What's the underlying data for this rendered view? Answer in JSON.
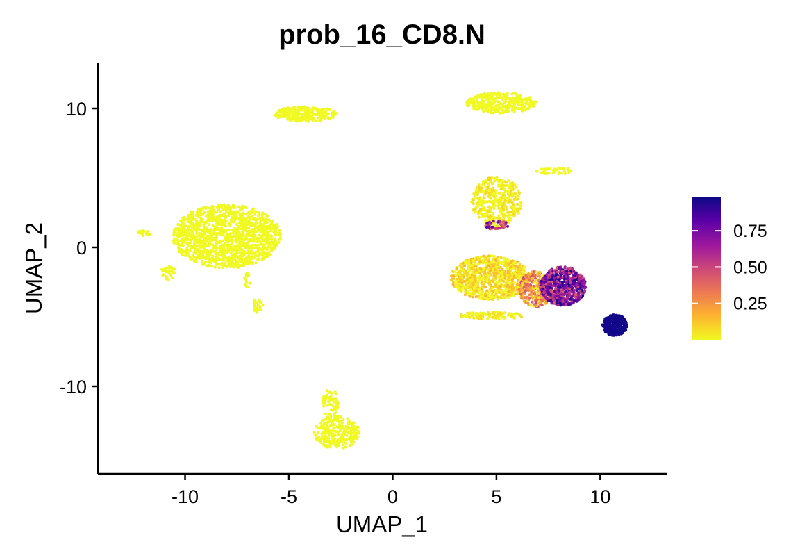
{
  "chart_data": {
    "type": "scatter",
    "title": "prob_16_CD8.N",
    "xlabel": "UMAP_1",
    "ylabel": "UMAP_2",
    "xlim": [
      -14.2,
      13.2
    ],
    "ylim": [
      -16.3,
      13.3
    ],
    "x_ticks": [
      -10,
      -5,
      0,
      5,
      10
    ],
    "x_tick_labels": [
      "-10",
      "-5",
      "0",
      "5",
      "10"
    ],
    "y_ticks": [
      -10,
      0,
      10
    ],
    "y_tick_labels": [
      "-10",
      "0",
      "10"
    ],
    "grid": false,
    "legend": {
      "placement": "right",
      "type": "colorbar",
      "range": [
        0.0,
        0.98
      ],
      "ticks": [
        0.25,
        0.5,
        0.75
      ],
      "tick_labels": [
        "0.25",
        "0.50",
        "0.75"
      ]
    },
    "colorscale": [
      "#f0f921",
      "#fdb42f",
      "#ed7953",
      "#cc4778",
      "#9c179e",
      "#5c01a6",
      "#0d0887"
    ],
    "clusters": [
      {
        "cx": -8.0,
        "cy": 0.8,
        "rx": 2.6,
        "ry": 2.3,
        "n": 1400,
        "value": 0.0,
        "jitter": 0.0
      },
      {
        "cx": -12.0,
        "cy": 1.0,
        "rx": 0.35,
        "ry": 0.2,
        "n": 20,
        "value": 0.0,
        "jitter": 0.0
      },
      {
        "cx": -10.8,
        "cy": -1.8,
        "rx": 0.35,
        "ry": 0.6,
        "n": 30,
        "value": 0.0,
        "jitter": 0.0
      },
      {
        "cx": -6.5,
        "cy": -4.2,
        "rx": 0.25,
        "ry": 0.5,
        "n": 25,
        "value": 0.0,
        "jitter": 0.0
      },
      {
        "cx": -7.0,
        "cy": -2.5,
        "rx": 0.15,
        "ry": 0.8,
        "n": 15,
        "value": 0.0,
        "jitter": 0.0
      },
      {
        "cx": -4.2,
        "cy": 9.6,
        "rx": 1.5,
        "ry": 0.55,
        "n": 280,
        "value": 0.0,
        "jitter": 0.0
      },
      {
        "cx": 5.2,
        "cy": 10.4,
        "rx": 1.7,
        "ry": 0.75,
        "n": 330,
        "value": 0.0,
        "jitter": 0.0
      },
      {
        "cx": 7.8,
        "cy": 5.5,
        "rx": 0.9,
        "ry": 0.25,
        "n": 40,
        "value": 0.0,
        "jitter": 0.0
      },
      {
        "cx": 5.0,
        "cy": 3.3,
        "rx": 1.2,
        "ry": 1.8,
        "n": 420,
        "value": 0.02,
        "jitter": 0.08
      },
      {
        "cx": 5.0,
        "cy": 1.6,
        "rx": 0.6,
        "ry": 0.3,
        "n": 40,
        "value": 0.55,
        "jitter": 0.35
      },
      {
        "cx": 4.7,
        "cy": -2.2,
        "rx": 1.9,
        "ry": 1.6,
        "n": 900,
        "value": 0.05,
        "jitter": 0.12
      },
      {
        "cx": 4.8,
        "cy": -4.9,
        "rx": 1.6,
        "ry": 0.25,
        "n": 100,
        "value": 0.02,
        "jitter": 0.06
      },
      {
        "cx": 6.9,
        "cy": -3.0,
        "rx": 0.8,
        "ry": 1.3,
        "n": 320,
        "value": 0.25,
        "jitter": 0.25
      },
      {
        "cx": 8.2,
        "cy": -2.8,
        "rx": 1.1,
        "ry": 1.4,
        "n": 700,
        "value": 0.7,
        "jitter": 0.3
      },
      {
        "cx": 10.7,
        "cy": -5.6,
        "rx": 0.6,
        "ry": 0.75,
        "n": 380,
        "value": 0.97,
        "jitter": 0.02
      },
      {
        "cx": -2.7,
        "cy": -13.3,
        "rx": 1.1,
        "ry": 1.2,
        "n": 260,
        "value": 0.0,
        "jitter": 0.0
      },
      {
        "cx": -3.0,
        "cy": -11.2,
        "rx": 0.4,
        "ry": 1.0,
        "n": 60,
        "value": 0.0,
        "jitter": 0.0
      }
    ]
  }
}
